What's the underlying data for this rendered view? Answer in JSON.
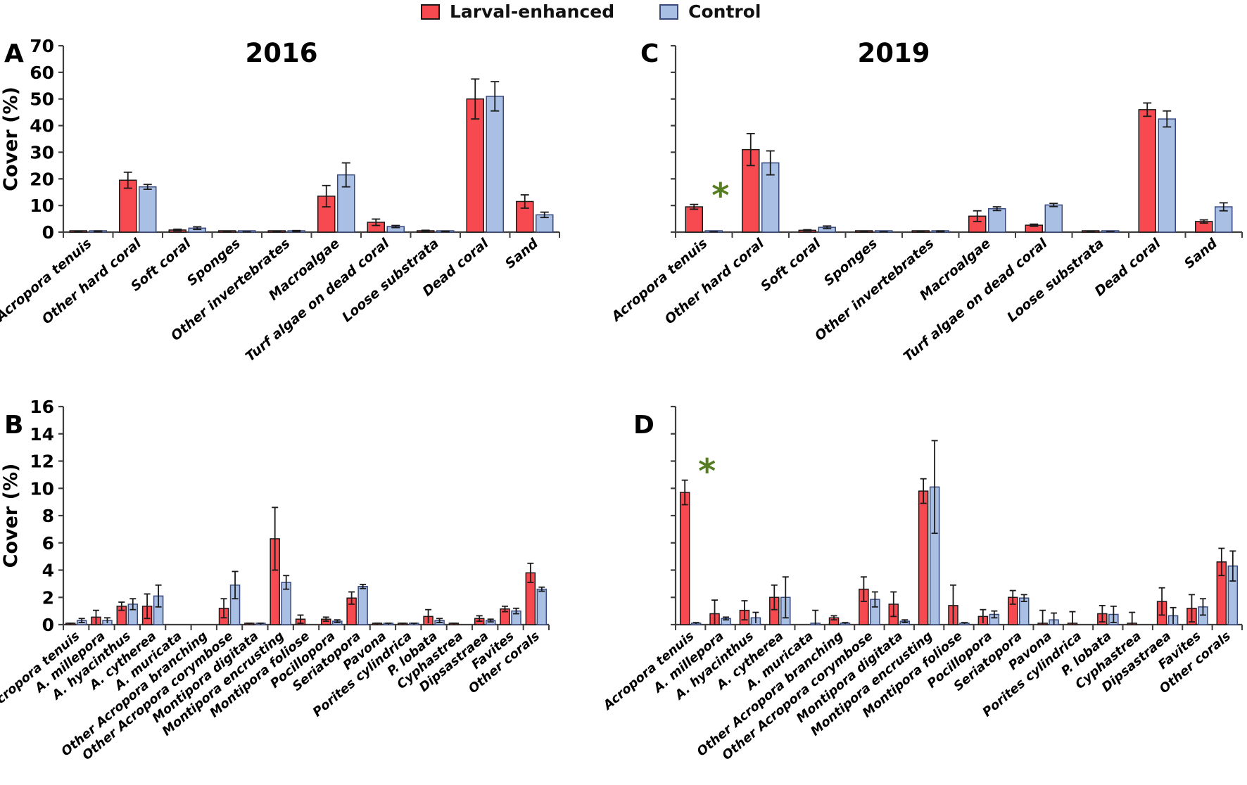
{
  "legend": {
    "items": [
      {
        "label": "Larval-enhanced",
        "color": "#f74a50",
        "border": "#1a1a1a"
      },
      {
        "label": "Control",
        "color": "#a9bfe3",
        "border": "#39497c"
      }
    ]
  },
  "asterisk": {
    "symbol": "*",
    "color": "#567d22"
  },
  "colors": {
    "red_fill": "#f74a50",
    "red_stroke": "#1a1a1a",
    "blue_fill": "#a9bfe3",
    "blue_stroke": "#39497c",
    "axis": "#3f3f3f",
    "error": "#1a1a1a"
  },
  "chart_data": [
    {
      "id": "A",
      "panel_label": "A",
      "type": "bar",
      "title": "2016",
      "ylabel": "Cover (%)",
      "ylim": [
        0,
        70
      ],
      "ytick_step": 10,
      "show_ytick_labels": true,
      "grid": false,
      "legend_position": "top-center",
      "categories": [
        "Acropora tenuis",
        "Other hard coral",
        "Soft coral",
        "Sponges",
        "Other invertebrates",
        "Macroalgae",
        "Turf algae on dead coral",
        "Loose substrata",
        "Dead coral",
        "Sand"
      ],
      "series": [
        {
          "name": "Larval-enhanced",
          "values": [
            0.1,
            19.5,
            0.8,
            0.08,
            0.2,
            13.5,
            3.7,
            0.5,
            50,
            11.5
          ],
          "errors": [
            0.05,
            3.0,
            0.3,
            0.05,
            0.1,
            4.0,
            1.2,
            0.2,
            7.5,
            2.5
          ]
        },
        {
          "name": "Control",
          "values": [
            0.3,
            17.0,
            1.5,
            0.08,
            0.4,
            21.5,
            2.1,
            0.25,
            51,
            6.5
          ],
          "errors": [
            0.15,
            0.9,
            0.5,
            0.05,
            0.2,
            4.5,
            0.4,
            0.1,
            5.5,
            1.0
          ]
        }
      ],
      "asterisk_index": null
    },
    {
      "id": "C",
      "panel_label": "C",
      "type": "bar",
      "title": "2019",
      "ylabel": "",
      "ylim": [
        0,
        70
      ],
      "ytick_step": 10,
      "show_ytick_labels": false,
      "grid": false,
      "categories": [
        "Acropora tenuis",
        "Other hard coral",
        "Soft coral",
        "Sponges",
        "Other invertebrates",
        "Macroalgae",
        "Turf algae on dead coral",
        "Loose substrata",
        "Dead coral",
        "Sand"
      ],
      "series": [
        {
          "name": "Larval-enhanced",
          "values": [
            9.5,
            31,
            0.7,
            0.1,
            0.2,
            6.0,
            2.6,
            0.2,
            46,
            4.0
          ],
          "errors": [
            0.9,
            6.0,
            0.2,
            0.05,
            0.1,
            2.0,
            0.4,
            0.1,
            2.5,
            0.6
          ]
        },
        {
          "name": "Control",
          "values": [
            0.1,
            26,
            1.8,
            0.1,
            0.3,
            8.8,
            10.2,
            0.2,
            42.5,
            9.5
          ],
          "errors": [
            0.05,
            4.5,
            0.5,
            0.05,
            0.15,
            0.7,
            0.6,
            0.1,
            3.0,
            1.5
          ]
        }
      ],
      "asterisk_index": 0
    },
    {
      "id": "B",
      "panel_label": "B",
      "type": "bar",
      "title": "",
      "ylabel": "Cover (%)",
      "ylim": [
        0,
        16
      ],
      "ytick_step": 2,
      "show_ytick_labels": true,
      "grid": false,
      "categories": [
        "Acropora tenuis",
        "A. millepora",
        "A. hyacinthus",
        "A. cytherea",
        "A. muricata",
        "Other Acropora branching",
        "Other Acropora corymbose",
        "Montipora digitata",
        "Montipora encrusting",
        "Montipora foliose",
        "Pocillopora",
        "Seriatopora",
        "Pavona",
        "Porites cylindrica",
        "P. lobata",
        "Cyphastrea",
        "Dipsastraea",
        "Favites",
        "Other corals"
      ],
      "series": [
        {
          "name": "Larval-enhanced",
          "values": [
            0.05,
            0.55,
            1.35,
            1.35,
            0,
            0,
            1.2,
            0.05,
            6.3,
            0.4,
            0.4,
            1.95,
            0.05,
            0.05,
            0.6,
            0.05,
            0.45,
            1.15,
            3.8
          ],
          "errors": [
            0.05,
            0.5,
            0.3,
            0.9,
            0,
            0,
            0.7,
            0.05,
            2.3,
            0.3,
            0.15,
            0.45,
            0.05,
            0.05,
            0.5,
            0.05,
            0.2,
            0.2,
            0.7
          ]
        },
        {
          "name": "Control",
          "values": [
            0.3,
            0.3,
            1.5,
            2.1,
            0,
            0,
            2.9,
            0.05,
            3.1,
            0,
            0.25,
            2.8,
            0.05,
            0.05,
            0.3,
            0,
            0.3,
            1.0,
            2.6
          ],
          "errors": [
            0.15,
            0.2,
            0.4,
            0.8,
            0,
            0,
            1.0,
            0.05,
            0.5,
            0,
            0.1,
            0.15,
            0.05,
            0.05,
            0.15,
            0,
            0.1,
            0.2,
            0.15
          ]
        }
      ],
      "asterisk_index": null
    },
    {
      "id": "D",
      "panel_label": "D",
      "type": "bar",
      "title": "",
      "ylabel": "",
      "ylim": [
        0,
        16
      ],
      "ytick_step": 2,
      "show_ytick_labels": false,
      "grid": false,
      "categories": [
        "Acropora tenuis",
        "A. millepora",
        "A. hyacinthus",
        "A. cytherea",
        "A. muricata",
        "Other Acropora branching",
        "Other Acropora corymbose",
        "Montipora digitata",
        "Montipora encrusting",
        "Montipora foliose",
        "Pocillopora",
        "Seriatopora",
        "Pavona",
        "Porites cylindrica",
        "P. lobata",
        "Cyphastrea",
        "Dipsastraea",
        "Favites",
        "Other corals"
      ],
      "series": [
        {
          "name": "Larval-enhanced",
          "values": [
            9.7,
            0.8,
            1.05,
            2.0,
            0,
            0.5,
            2.6,
            1.5,
            9.8,
            1.4,
            0.6,
            2.0,
            0.05,
            0.05,
            0.8,
            0.1,
            1.7,
            1.2,
            4.6
          ],
          "errors": [
            0.9,
            1.0,
            0.7,
            0.9,
            0,
            0.15,
            0.9,
            0.9,
            0.9,
            1.5,
            0.5,
            0.5,
            1.0,
            0.9,
            0.6,
            0.8,
            1.0,
            1.0,
            1.0
          ]
        },
        {
          "name": "Control",
          "values": [
            0.1,
            0.45,
            0.5,
            2.0,
            0.05,
            0.1,
            1.85,
            0.25,
            10.1,
            0.1,
            0.75,
            1.95,
            0.35,
            0,
            0.75,
            0,
            0.65,
            1.3,
            4.3
          ],
          "errors": [
            0.05,
            0.1,
            0.4,
            1.5,
            1.0,
            0.05,
            0.55,
            0.1,
            3.4,
            0.05,
            0.25,
            0.25,
            0.5,
            0,
            0.6,
            0,
            0.6,
            0.6,
            1.1
          ]
        }
      ],
      "asterisk_index": 0
    }
  ]
}
